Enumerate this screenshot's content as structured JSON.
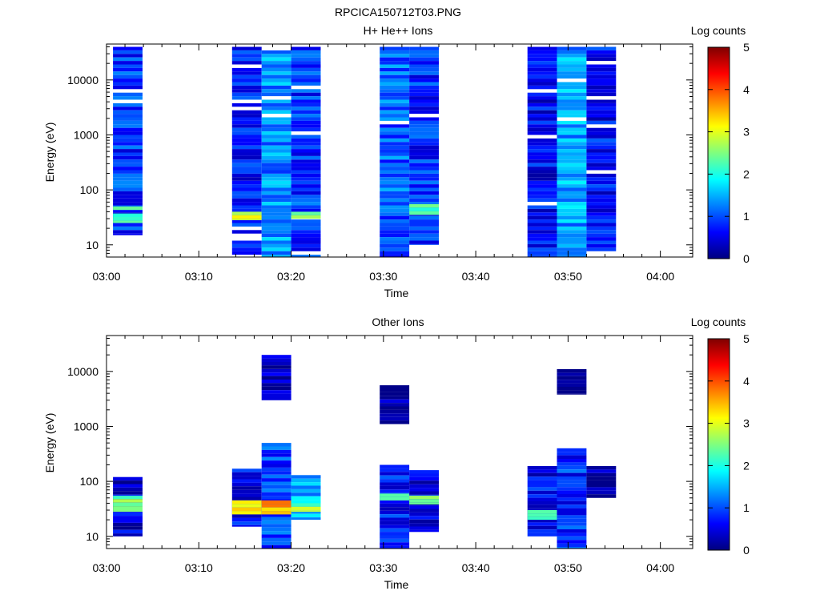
{
  "page_title": "RPCICA150712T03.PNG",
  "colorbar_stops": [
    "#00007f",
    "#0000ff",
    "#007fff",
    "#00ffff",
    "#7fff7f",
    "#ffff00",
    "#ff7f00",
    "#ff0000",
    "#7f0000"
  ],
  "chart_data": [
    {
      "type": "heatmap",
      "title": "H+ He++ Ions",
      "xlabel": "Time",
      "ylabel": "Energy (eV)",
      "colorbar_label": "Log counts",
      "colorbar_range": [
        0,
        5
      ],
      "colorbar_ticks": [
        "0",
        "1",
        "2",
        "3",
        "4",
        "5"
      ],
      "y_scale": "log",
      "ylim": [
        6,
        45000
      ],
      "xlim_minutes": [
        0,
        63.5
      ],
      "x_ticks": [
        "03:00",
        "03:10",
        "03:20",
        "03:30",
        "03:40",
        "03:50",
        "04:00"
      ],
      "y_ticks": [
        "10",
        "100",
        "1000",
        "10000"
      ],
      "time_bins_minutes": [
        [
          0.7,
          3.9
        ],
        [
          13.6,
          16.8
        ],
        [
          16.8,
          20.0
        ],
        [
          20.0,
          23.2
        ],
        [
          29.6,
          32.8
        ],
        [
          32.8,
          36.0
        ],
        [
          45.6,
          48.8
        ],
        [
          48.8,
          52.0
        ],
        [
          52.0,
          55.2
        ]
      ],
      "energy_cells": [
        {
          "bin": 0,
          "e_min": 15,
          "e_max": 40000,
          "level": 0.85
        },
        {
          "bin": 0,
          "e_min": 25,
          "e_max": 50,
          "level": 2.0
        },
        {
          "bin": 1,
          "e_min": 6,
          "e_max": 40000,
          "level": 0.7
        },
        {
          "bin": 1,
          "e_min": 28,
          "e_max": 40,
          "level": 3.0
        },
        {
          "bin": 2,
          "e_min": 6,
          "e_max": 40000,
          "level": 1.3
        },
        {
          "bin": 3,
          "e_min": 6,
          "e_max": 40000,
          "level": 0.85
        },
        {
          "bin": 3,
          "e_min": 28,
          "e_max": 40,
          "level": 2.4
        },
        {
          "bin": 4,
          "e_min": 6,
          "e_max": 40000,
          "level": 1.1
        },
        {
          "bin": 5,
          "e_min": 10,
          "e_max": 40000,
          "level": 0.8
        },
        {
          "bin": 5,
          "e_min": 35,
          "e_max": 55,
          "level": 2.2
        },
        {
          "bin": 6,
          "e_min": 6,
          "e_max": 40000,
          "level": 0.6
        },
        {
          "bin": 7,
          "e_min": 6,
          "e_max": 40000,
          "level": 1.4
        },
        {
          "bin": 8,
          "e_min": 6,
          "e_max": 40000,
          "level": 0.65
        }
      ]
    },
    {
      "type": "heatmap",
      "title": "Other Ions",
      "xlabel": "Time",
      "ylabel": "Energy (eV)",
      "colorbar_label": "Log counts",
      "colorbar_range": [
        0,
        5
      ],
      "colorbar_ticks": [
        "0",
        "1",
        "2",
        "3",
        "4",
        "5"
      ],
      "y_scale": "log",
      "ylim": [
        6,
        45000
      ],
      "xlim_minutes": [
        0,
        63.5
      ],
      "x_ticks": [
        "03:00",
        "03:10",
        "03:20",
        "03:30",
        "03:40",
        "03:50",
        "04:00"
      ],
      "y_ticks": [
        "10",
        "100",
        "1000",
        "10000"
      ],
      "time_bins_minutes": [
        [
          0.7,
          3.9
        ],
        [
          13.6,
          16.8
        ],
        [
          16.8,
          20.0
        ],
        [
          20.0,
          23.2
        ],
        [
          29.6,
          32.8
        ],
        [
          32.8,
          36.0
        ],
        [
          45.6,
          48.8
        ],
        [
          48.8,
          52.0
        ],
        [
          52.0,
          55.2
        ]
      ],
      "energy_cells": [
        {
          "bin": 0,
          "e_min": 10,
          "e_max": 120,
          "level": 0.4
        },
        {
          "bin": 0,
          "e_min": 28,
          "e_max": 55,
          "level": 2.3
        },
        {
          "bin": 1,
          "e_min": 15,
          "e_max": 170,
          "level": 0.6
        },
        {
          "bin": 1,
          "e_min": 25,
          "e_max": 45,
          "level": 3.1
        },
        {
          "bin": 2,
          "e_min": 6,
          "e_max": 500,
          "level": 0.9
        },
        {
          "bin": 2,
          "e_min": 25,
          "e_max": 45,
          "level": 3.4
        },
        {
          "bin": 2,
          "e_min": 3000,
          "e_max": 20000,
          "level": 0.2
        },
        {
          "bin": 3,
          "e_min": 20,
          "e_max": 130,
          "level": 1.5
        },
        {
          "bin": 3,
          "e_min": 28,
          "e_max": 40,
          "level": 2.6
        },
        {
          "bin": 4,
          "e_min": 6,
          "e_max": 200,
          "level": 0.7
        },
        {
          "bin": 4,
          "e_min": 45,
          "e_max": 60,
          "level": 2.0
        },
        {
          "bin": 4,
          "e_min": 1100,
          "e_max": 5600,
          "level": 0.2
        },
        {
          "bin": 5,
          "e_min": 12,
          "e_max": 160,
          "level": 0.5
        },
        {
          "bin": 5,
          "e_min": 38,
          "e_max": 55,
          "level": 2.3
        },
        {
          "bin": 6,
          "e_min": 10,
          "e_max": 190,
          "level": 0.6
        },
        {
          "bin": 6,
          "e_min": 20,
          "e_max": 30,
          "level": 2.0
        },
        {
          "bin": 7,
          "e_min": 6,
          "e_max": 400,
          "level": 0.8
        },
        {
          "bin": 7,
          "e_min": 3800,
          "e_max": 11000,
          "level": 0.2
        },
        {
          "bin": 8,
          "e_min": 50,
          "e_max": 190,
          "level": 0.3
        }
      ]
    }
  ]
}
